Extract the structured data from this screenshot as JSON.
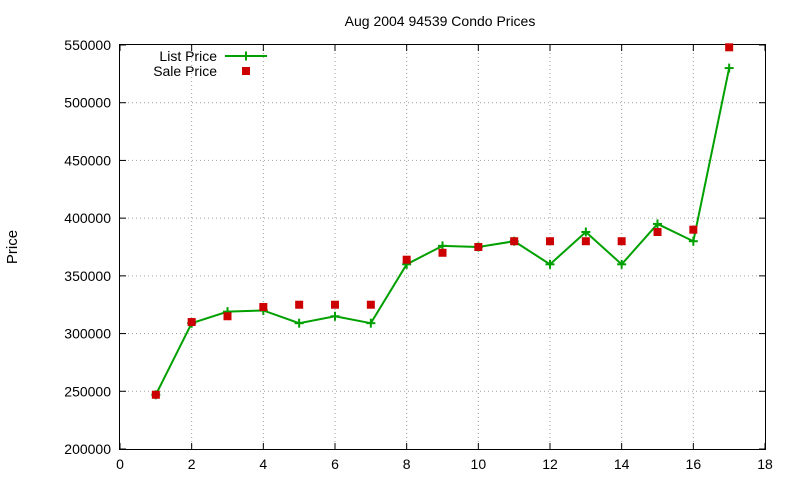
{
  "chart_data": {
    "type": "line",
    "title": "Aug 2004 94539 Condo Prices",
    "xlabel": "",
    "ylabel": "Price",
    "xlim": [
      0,
      18
    ],
    "ylim": [
      200000,
      550000
    ],
    "x_ticks": [
      "0",
      "2",
      "4",
      "6",
      "8",
      "10",
      "12",
      "14",
      "16",
      "18"
    ],
    "y_ticks": [
      "200000",
      "250000",
      "300000",
      "350000",
      "400000",
      "450000",
      "500000",
      "550000"
    ],
    "grid": true,
    "legend_position": "top-left",
    "series": [
      {
        "name": "List Price",
        "style": "line-plus",
        "color": "#00a000",
        "x": [
          1,
          2,
          3,
          4,
          5,
          6,
          7,
          8,
          9,
          10,
          11,
          12,
          13,
          14,
          15,
          16,
          17
        ],
        "y": [
          247000,
          309000,
          319000,
          320000,
          309000,
          315000,
          309000,
          360000,
          376000,
          375000,
          380000,
          360000,
          388000,
          360000,
          395000,
          380000,
          530000
        ]
      },
      {
        "name": "Sale Price",
        "style": "square-points",
        "color": "#cc0000",
        "x": [
          1,
          2,
          3,
          4,
          5,
          6,
          7,
          8,
          9,
          10,
          11,
          12,
          13,
          14,
          15,
          16,
          17
        ],
        "y": [
          247000,
          310000,
          315000,
          323000,
          325000,
          325000,
          325000,
          364000,
          370000,
          375000,
          380000,
          380000,
          380000,
          380000,
          388000,
          390000,
          548000
        ]
      }
    ]
  }
}
